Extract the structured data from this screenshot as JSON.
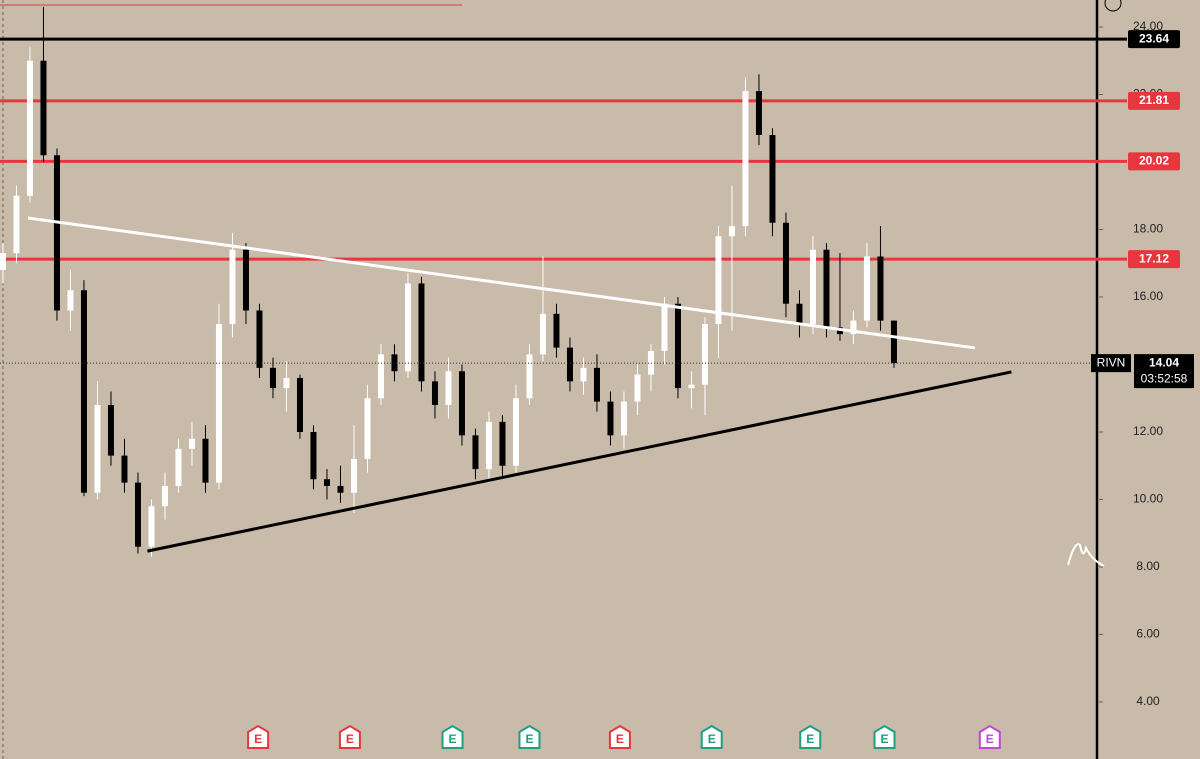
{
  "chart_data": {
    "type": "candlestick",
    "symbol": "RIVN",
    "last_price": 14.04,
    "countdown": "03:52:58",
    "ylim": [
      2.31,
      24.8
    ],
    "xlim": [
      -0.22,
      81.04
    ],
    "yticks": [
      {
        "value": 4,
        "label": "4.00"
      },
      {
        "value": 6,
        "label": "6.00"
      },
      {
        "value": 8,
        "label": "8.00"
      },
      {
        "value": 10,
        "label": "10.00"
      },
      {
        "value": 12,
        "label": "12.00"
      },
      {
        "value": 14,
        "label": "14.00"
      },
      {
        "value": 16,
        "label": "16.00"
      },
      {
        "value": 18,
        "label": "18.00"
      },
      {
        "value": 20,
        "label": "20.00"
      },
      {
        "value": 22,
        "label": "22.00"
      },
      {
        "value": 24,
        "label": "24.00"
      }
    ],
    "up_color": "#ffffff",
    "down_color": "#000000",
    "open": [
      16.8,
      17.3,
      19,
      23,
      20.2,
      15.6,
      16.2,
      10.2,
      12.8,
      11.3,
      10.5,
      8.6,
      9.8,
      10.4,
      11.5,
      11.8,
      10.5,
      15.2,
      17.4,
      15.6,
      13.9,
      13.3,
      13.6,
      12,
      10.6,
      10.4,
      10.2,
      11.2,
      13,
      14.3,
      13.8,
      16.4,
      13.5,
      12.8,
      13.8,
      11.9,
      10.9,
      12.3,
      11,
      13,
      14.3,
      15.5,
      14.5,
      13.5,
      13.9,
      12.9,
      11.9,
      12.9,
      13.7,
      14.4,
      15.8,
      13.3,
      13.4,
      15.2,
      17.8,
      18.1,
      22.1,
      20.8,
      18.2,
      15.8,
      15.2,
      17.4,
      15.1,
      14.9,
      15.3,
      17.2,
      15.3
    ],
    "high": [
      17.6,
      19.3,
      23.4,
      24.6,
      20.4,
      16.8,
      16.5,
      13.5,
      13.2,
      11.8,
      10.8,
      10,
      10.8,
      11.8,
      12.3,
      12.2,
      15.8,
      17.9,
      17.6,
      15.8,
      14.2,
      14.1,
      13.7,
      12.2,
      10.9,
      11,
      12.2,
      13.4,
      14.6,
      14.6,
      16.7,
      16.6,
      13.8,
      14.2,
      14,
      12.1,
      12.6,
      12.5,
      13.4,
      14.6,
      17.2,
      15.8,
      14.8,
      14.2,
      14.3,
      13.2,
      13.2,
      14,
      14.6,
      16,
      16,
      13.8,
      15.4,
      18.1,
      19.3,
      22.5,
      22.6,
      21,
      18.5,
      16.2,
      17.8,
      17.6,
      17.3,
      15.6,
      17.6,
      18.1,
      15.3
    ],
    "low": [
      16.4,
      17,
      18.8,
      20,
      15.3,
      15,
      10.1,
      10,
      11,
      10.2,
      8.4,
      8.3,
      9.4,
      10.2,
      11,
      10.2,
      10.3,
      14.8,
      15.2,
      13.6,
      13,
      12.6,
      11.8,
      10.3,
      10,
      9.9,
      9.6,
      10.8,
      12.8,
      13.5,
      13.6,
      13.2,
      12.4,
      12.4,
      11.6,
      10.6,
      10.5,
      10.7,
      10.8,
      12.8,
      14.1,
      14.2,
      13.2,
      13.1,
      12.6,
      11.6,
      11.5,
      12.5,
      13.2,
      14,
      13,
      12.7,
      12.5,
      14.2,
      15,
      17.8,
      20.5,
      17.8,
      15.4,
      14.8,
      14.9,
      14.8,
      14.7,
      14.6,
      15.1,
      15,
      13.9
    ],
    "close": [
      17.3,
      19,
      23,
      20.2,
      15.6,
      16.2,
      10.2,
      12.8,
      11.3,
      10.5,
      8.6,
      9.8,
      10.4,
      11.5,
      11.8,
      10.5,
      15.2,
      17.4,
      15.6,
      13.9,
      13.3,
      13.6,
      12,
      10.6,
      10.4,
      10.2,
      11.2,
      13,
      14.3,
      13.8,
      16.4,
      13.5,
      12.8,
      13.8,
      11.9,
      10.9,
      12.3,
      11,
      13,
      14.3,
      15.5,
      14.5,
      13.5,
      13.9,
      12.9,
      11.9,
      12.9,
      13.7,
      14.4,
      15.8,
      13.3,
      13.4,
      15.2,
      17.8,
      18.1,
      22.1,
      20.8,
      18.2,
      15.8,
      15.2,
      17.4,
      15.1,
      14.9,
      15.3,
      17.2,
      15.3,
      14.04
    ],
    "levels": [
      {
        "value": 23.64,
        "color": "#000000"
      },
      {
        "value": 21.81,
        "color": "#e8363f"
      },
      {
        "value": 20.02,
        "color": "#e8363f"
      },
      {
        "value": 17.12,
        "color": "#e8363f"
      }
    ],
    "trendlines": [
      {
        "color": "#ffffff",
        "x": [
          1.85,
          72
        ],
        "y": [
          18.34,
          14.49
        ]
      },
      {
        "color": "#000000",
        "x": [
          10.7,
          74.7
        ],
        "y": [
          8.47,
          13.78
        ]
      }
    ],
    "earnings": {
      "x": [
        18.9,
        25.7,
        33.3,
        39,
        45.7,
        52.5,
        59.8,
        65.3,
        73.1
      ],
      "labels": [
        "E",
        "E",
        "E",
        "E",
        "E",
        "E",
        "E",
        "E",
        "E"
      ],
      "colors": [
        "#e8363f",
        "#e8363f",
        "#1e9e82",
        "#1e9e82",
        "#e8363f",
        "#1e9e82",
        "#1e9e82",
        "#1e9e82",
        "#c445d6"
      ]
    }
  }
}
